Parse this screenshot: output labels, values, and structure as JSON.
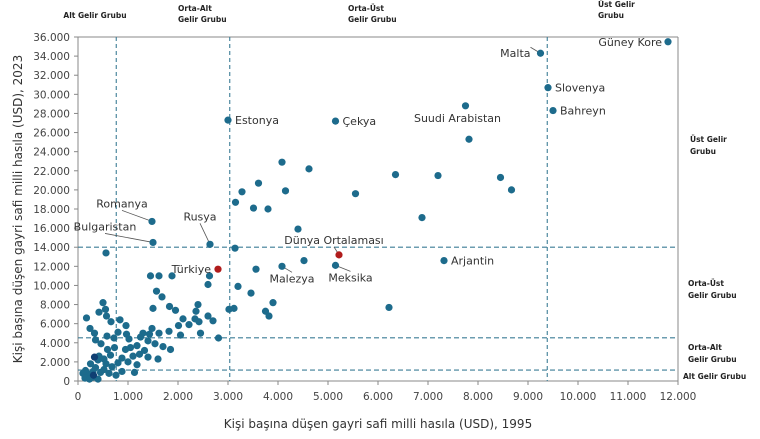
{
  "chart_data": {
    "type": "scatter",
    "title": "",
    "xlabel": "Kişi başına düşen gayri safi milli hasıla (USD), 1995",
    "ylabel": "Kişi başına düşen gayri safi milli hasıla (USD), 2023",
    "xlim": [
      0,
      12000
    ],
    "ylim": [
      0,
      36000
    ],
    "x_ticks": [
      0,
      1000,
      2000,
      3000,
      4000,
      5000,
      6000,
      7000,
      8000,
      9000,
      10000,
      11000,
      12000
    ],
    "x_tick_labels": [
      "0",
      "1.000",
      "2.000",
      "3.000",
      "4.000",
      "5.000",
      "6.000",
      "7.000",
      "8.000",
      "9.000",
      "10.000",
      "11.000",
      "12.000"
    ],
    "y_ticks": [
      0,
      2000,
      4000,
      6000,
      8000,
      10000,
      12000,
      14000,
      16000,
      18000,
      20000,
      22000,
      24000,
      26000,
      28000,
      30000,
      32000,
      34000,
      36000
    ],
    "y_tick_labels": [
      "0",
      "2.000",
      "4.000",
      "6.000",
      "8.000",
      "10.000",
      "12.000",
      "14.000",
      "16.000",
      "18.000",
      "20.000",
      "22.000",
      "24.000",
      "26.000",
      "28.000",
      "30.000",
      "32.000",
      "34.000",
      "36.000"
    ],
    "grid": false,
    "colors": {
      "point": "#1d6b8c",
      "point_dark": "#0f3f73",
      "highlight": "#b01c1c",
      "threshold": "#3c7d96",
      "axis": "#888888"
    },
    "thresholds": {
      "x": [
        {
          "value": 765,
          "label": "Alt Gelir Grubu"
        },
        {
          "value": 3035,
          "label": "Orta-Alt Gelir Grubu"
        },
        {
          "value": 9385,
          "label": "Orta-Üst Gelir Grubu"
        },
        {
          "value": 12000,
          "label": "Üst Gelir Grubu"
        }
      ],
      "y": [
        {
          "value": 1145,
          "label": "Alt Gelir Grubu"
        },
        {
          "value": 4515,
          "label": "Orta-Alt Gelir Grubu"
        },
        {
          "value": 14005,
          "label": "Orta-Üst Gelir Grubu"
        },
        {
          "value": 36000,
          "label": "Üst Gelir Grubu"
        }
      ]
    },
    "top_group_labels": [
      {
        "line1": "Alt Gelir Grubu",
        "line2": ""
      },
      {
        "line1": "Orta-Alt",
        "line2": "Gelir Grubu"
      },
      {
        "line1": "Orta-Üst",
        "line2": "Gelir Grubu"
      },
      {
        "line1": "Üst Gelir",
        "line2": "Grubu"
      }
    ],
    "right_group_labels": [
      {
        "line1": "Üst Gelir",
        "line2": "Grubu"
      },
      {
        "line1": "Orta-Üst",
        "line2": "Gelir Grubu"
      },
      {
        "line1": "Orta-Alt",
        "line2": "Gelir Grubu"
      },
      {
        "line1": "Alt Gelir Grubu",
        "line2": ""
      }
    ],
    "labeled_points": [
      {
        "name": "Güney Kore",
        "x": 11800,
        "y": 35500,
        "highlight": false
      },
      {
        "name": "Malta",
        "x": 9250,
        "y": 34300,
        "highlight": false
      },
      {
        "name": "Slovenya",
        "x": 9400,
        "y": 30700,
        "highlight": false
      },
      {
        "name": "Bahreyn",
        "x": 9500,
        "y": 28300,
        "highlight": false
      },
      {
        "name": "Suudi Arabistan",
        "x": 7750,
        "y": 28800,
        "highlight": false
      },
      {
        "name": "Estonya",
        "x": 3000,
        "y": 27300,
        "highlight": false
      },
      {
        "name": "Çekya",
        "x": 5150,
        "y": 27200,
        "highlight": false
      },
      {
        "name": "Romanya",
        "x": 1480,
        "y": 16700,
        "highlight": false
      },
      {
        "name": "Bulgaristan",
        "x": 1500,
        "y": 14500,
        "highlight": false
      },
      {
        "name": "Rusya",
        "x": 2640,
        "y": 14300,
        "highlight": false
      },
      {
        "name": "Türkiye",
        "x": 2800,
        "y": 11700,
        "highlight": true
      },
      {
        "name": "Dünya Ortalaması",
        "x": 5220,
        "y": 13200,
        "highlight": true
      },
      {
        "name": "Malezya",
        "x": 4080,
        "y": 12000,
        "highlight": false
      },
      {
        "name": "Meksika",
        "x": 5150,
        "y": 12100,
        "highlight": false
      },
      {
        "name": "Arjantin",
        "x": 7320,
        "y": 12600,
        "highlight": false
      }
    ],
    "points": [
      {
        "x": 3280,
        "y": 19800
      },
      {
        "x": 3610,
        "y": 20700
      },
      {
        "x": 4080,
        "y": 22900
      },
      {
        "x": 4620,
        "y": 22200
      },
      {
        "x": 3150,
        "y": 18700
      },
      {
        "x": 3510,
        "y": 18100
      },
      {
        "x": 3800,
        "y": 18000
      },
      {
        "x": 4150,
        "y": 19900
      },
      {
        "x": 4400,
        "y": 15900
      },
      {
        "x": 5550,
        "y": 19600
      },
      {
        "x": 6350,
        "y": 21600
      },
      {
        "x": 7200,
        "y": 21500
      },
      {
        "x": 7820,
        "y": 25300
      },
      {
        "x": 8450,
        "y": 21300
      },
      {
        "x": 8670,
        "y": 20000
      },
      {
        "x": 6880,
        "y": 17100
      },
      {
        "x": 6220,
        "y": 7700
      },
      {
        "x": 3140,
        "y": 13900
      },
      {
        "x": 3460,
        "y": 9200
      },
      {
        "x": 4520,
        "y": 12600
      },
      {
        "x": 3200,
        "y": 9900
      },
      {
        "x": 3900,
        "y": 8200
      },
      {
        "x": 3750,
        "y": 7300
      },
      {
        "x": 3820,
        "y": 6800
      },
      {
        "x": 3120,
        "y": 7600
      },
      {
        "x": 3020,
        "y": 7500
      },
      {
        "x": 3560,
        "y": 11700
      },
      {
        "x": 2400,
        "y": 8000
      },
      {
        "x": 2360,
        "y": 7300
      },
      {
        "x": 2340,
        "y": 6500
      },
      {
        "x": 2420,
        "y": 6200
      },
      {
        "x": 2810,
        "y": 4500
      },
      {
        "x": 2450,
        "y": 5000
      },
      {
        "x": 1880,
        "y": 11000
      },
      {
        "x": 2630,
        "y": 11000
      },
      {
        "x": 2600,
        "y": 10100
      },
      {
        "x": 1620,
        "y": 11000
      },
      {
        "x": 1450,
        "y": 11000
      },
      {
        "x": 1570,
        "y": 9400
      },
      {
        "x": 1680,
        "y": 8800
      },
      {
        "x": 1500,
        "y": 7600
      },
      {
        "x": 1830,
        "y": 7800
      },
      {
        "x": 1950,
        "y": 7400
      },
      {
        "x": 2100,
        "y": 6500
      },
      {
        "x": 2220,
        "y": 5900
      },
      {
        "x": 2010,
        "y": 5800
      },
      {
        "x": 1820,
        "y": 5200
      },
      {
        "x": 1620,
        "y": 5000
      },
      {
        "x": 1430,
        "y": 4900
      },
      {
        "x": 1300,
        "y": 5000
      },
      {
        "x": 1250,
        "y": 4600
      },
      {
        "x": 1400,
        "y": 4200
      },
      {
        "x": 1540,
        "y": 3900
      },
      {
        "x": 1180,
        "y": 3700
      },
      {
        "x": 1050,
        "y": 3500
      },
      {
        "x": 950,
        "y": 3300
      },
      {
        "x": 1330,
        "y": 3200
      },
      {
        "x": 1230,
        "y": 2800
      },
      {
        "x": 1100,
        "y": 2600
      },
      {
        "x": 880,
        "y": 2400
      },
      {
        "x": 800,
        "y": 1900
      },
      {
        "x": 1000,
        "y": 2000
      },
      {
        "x": 1180,
        "y": 1700
      },
      {
        "x": 680,
        "y": 1500
      },
      {
        "x": 560,
        "y": 1800
      },
      {
        "x": 400,
        "y": 2200
      },
      {
        "x": 350,
        "y": 1400
      },
      {
        "x": 300,
        "y": 1000
      },
      {
        "x": 200,
        "y": 700
      },
      {
        "x": 150,
        "y": 1100
      },
      {
        "x": 250,
        "y": 1800
      },
      {
        "x": 420,
        "y": 2600
      },
      {
        "x": 520,
        "y": 2300
      },
      {
        "x": 650,
        "y": 2700
      },
      {
        "x": 730,
        "y": 3500
      },
      {
        "x": 590,
        "y": 3300
      },
      {
        "x": 460,
        "y": 3900
      },
      {
        "x": 350,
        "y": 4300
      },
      {
        "x": 240,
        "y": 5500
      },
      {
        "x": 170,
        "y": 6600
      },
      {
        "x": 420,
        "y": 7200
      },
      {
        "x": 550,
        "y": 7500
      },
      {
        "x": 570,
        "y": 6800
      },
      {
        "x": 660,
        "y": 6200
      },
      {
        "x": 500,
        "y": 8200
      },
      {
        "x": 840,
        "y": 6400
      },
      {
        "x": 960,
        "y": 5800
      },
      {
        "x": 800,
        "y": 5100
      },
      {
        "x": 1020,
        "y": 4400
      },
      {
        "x": 720,
        "y": 4500
      },
      {
        "x": 580,
        "y": 4700
      },
      {
        "x": 330,
        "y": 5000
      },
      {
        "x": 560,
        "y": 13400
      },
      {
        "x": 100,
        "y": 800
      },
      {
        "x": 140,
        "y": 300
      },
      {
        "x": 300,
        "y": 400
      },
      {
        "x": 450,
        "y": 900
      },
      {
        "x": 520,
        "y": 1200
      },
      {
        "x": 620,
        "y": 800
      },
      {
        "x": 880,
        "y": 1000
      },
      {
        "x": 1130,
        "y": 900
      },
      {
        "x": 760,
        "y": 600
      },
      {
        "x": 400,
        "y": 200
      },
      {
        "x": 230,
        "y": 200
      },
      {
        "x": 330,
        "y": 2500,
        "dark": true
      },
      {
        "x": 310,
        "y": 600,
        "dark": true
      },
      {
        "x": 1400,
        "y": 2500
      },
      {
        "x": 1700,
        "y": 3600
      },
      {
        "x": 1850,
        "y": 3300
      },
      {
        "x": 1600,
        "y": 2300
      },
      {
        "x": 2050,
        "y": 4800
      },
      {
        "x": 2600,
        "y": 6800
      },
      {
        "x": 2700,
        "y": 6300
      },
      {
        "x": 970,
        "y": 4900
      },
      {
        "x": 1480,
        "y": 5500
      }
    ]
  }
}
